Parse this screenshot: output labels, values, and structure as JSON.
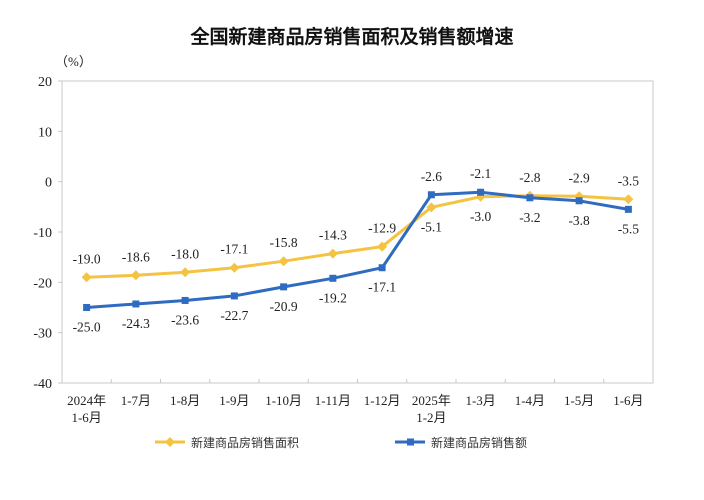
{
  "chart_data": {
    "type": "line",
    "title": "全国新建商品房销售面积及销售额增速",
    "ylabel": "（%）",
    "ylim": [
      -40,
      20
    ],
    "yticks": [
      20,
      10,
      0,
      -10,
      -20,
      -30,
      -40
    ],
    "grid": false,
    "legend_position": "bottom",
    "categories": [
      [
        "2024年",
        "1-6月"
      ],
      [
        "1-7月"
      ],
      [
        "1-8月"
      ],
      [
        "1-9月"
      ],
      [
        "1-10月"
      ],
      [
        "1-11月"
      ],
      [
        "1-12月"
      ],
      [
        "2025年",
        "1-2月"
      ],
      [
        "1-3月"
      ],
      [
        "1-4月"
      ],
      [
        "1-5月"
      ],
      [
        "1-6月"
      ]
    ],
    "series": [
      {
        "name": "新建商品房销售面积",
        "color": "#F5C342",
        "marker": "diamond",
        "values": [
          -19.0,
          -18.6,
          -18.0,
          -17.1,
          -15.8,
          -14.3,
          -12.9,
          -5.1,
          -3.0,
          -2.8,
          -2.9,
          -3.5
        ]
      },
      {
        "name": "新建商品房销售额",
        "color": "#2F6BC0",
        "marker": "square",
        "values": [
          -25.0,
          -24.3,
          -23.6,
          -22.7,
          -20.9,
          -19.2,
          -17.1,
          -2.6,
          -2.1,
          -3.2,
          -3.8,
          -5.5
        ]
      }
    ]
  }
}
